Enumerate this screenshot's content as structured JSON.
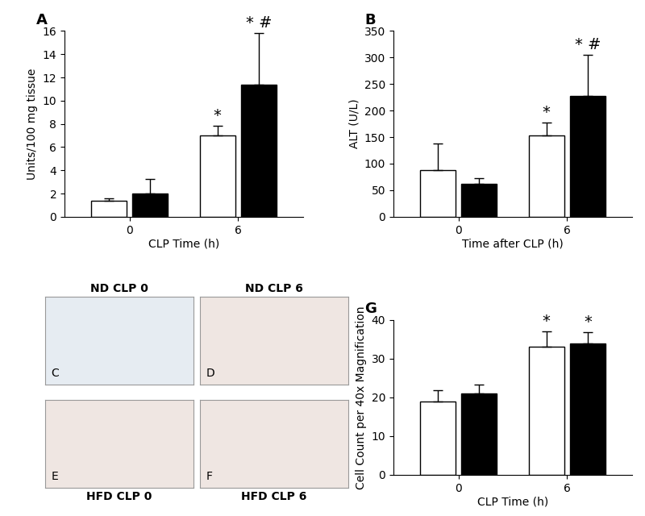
{
  "chart_data": [
    {
      "type": "bar",
      "title": "A",
      "ylabel": "Units/100 mg tissue",
      "xlabel": "CLP Time (h)",
      "categories": [
        "0",
        "6"
      ],
      "series": [
        {
          "color": "#ffffff",
          "values": [
            1.4,
            7.0
          ],
          "errors": [
            0.15,
            0.8
          ],
          "significance": [
            null,
            "*"
          ]
        },
        {
          "color": "#000000",
          "values": [
            2.0,
            11.4
          ],
          "errors": [
            1.25,
            4.4
          ],
          "significance": [
            null,
            "* #"
          ]
        }
      ],
      "ylim": [
        0,
        16
      ],
      "yticks": [
        0,
        2,
        4,
        6,
        8,
        10,
        12,
        14,
        16
      ]
    },
    {
      "type": "bar",
      "title": "B",
      "ylabel": "ALT (U/L)",
      "xlabel": "Time after CLP (h)",
      "categories": [
        "0",
        "6"
      ],
      "series": [
        {
          "color": "#ffffff",
          "values": [
            88,
            153
          ],
          "errors": [
            50,
            24
          ],
          "significance": [
            null,
            "*"
          ]
        },
        {
          "color": "#000000",
          "values": [
            62,
            227
          ],
          "errors": [
            10,
            78
          ],
          "significance": [
            null,
            "* #"
          ]
        }
      ],
      "ylim": [
        0,
        350
      ],
      "yticks": [
        0,
        50,
        100,
        150,
        200,
        250,
        300,
        350
      ]
    },
    {
      "type": "bar",
      "title": "G",
      "ylabel": "Cell Count per 40x Magnification",
      "xlabel": "CLP Time (h)",
      "categories": [
        "0",
        "6"
      ],
      "series": [
        {
          "color": "#ffffff",
          "values": [
            19,
            33
          ],
          "errors": [
            2.8,
            4
          ],
          "significance": [
            null,
            "*"
          ]
        },
        {
          "color": "#000000",
          "values": [
            21,
            34
          ],
          "errors": [
            2.2,
            2.8
          ],
          "significance": [
            null,
            "*"
          ]
        }
      ],
      "ylim": [
        0,
        40
      ],
      "yticks": [
        0,
        10,
        20,
        30,
        40
      ]
    }
  ],
  "micrographs": {
    "top_labels": [
      "ND CLP 0",
      "ND CLP 6"
    ],
    "bottom_labels": [
      "HFD CLP 0",
      "HFD CLP 6"
    ],
    "letters": [
      [
        "C",
        "D"
      ],
      [
        "E",
        "F"
      ]
    ]
  }
}
